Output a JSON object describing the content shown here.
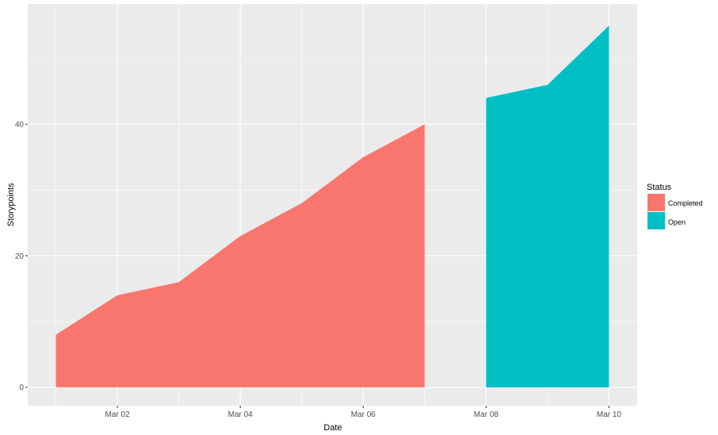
{
  "chart_data": {
    "type": "area",
    "xlabel": "Date",
    "ylabel": "Storypoints",
    "x_ticks": [
      "Mar 02",
      "Mar 04",
      "Mar 06",
      "Mar 08",
      "Mar 10"
    ],
    "y_ticks": [
      0,
      20,
      40
    ],
    "xlim": [
      "Feb 28 13:00",
      "Mar 10 11:00"
    ],
    "ylim": [
      -2.8,
      58.3
    ],
    "grid": true,
    "legend": {
      "title": "Status",
      "placement": "right",
      "entries": [
        {
          "label": "Completed",
          "color": "#F8766D"
        },
        {
          "label": "Open",
          "color": "#00BFC4"
        }
      ]
    },
    "series": [
      {
        "name": "Completed",
        "color": "#F8766D",
        "x": [
          "Mar 01",
          "Mar 02",
          "Mar 03",
          "Mar 04",
          "Mar 05",
          "Mar 06",
          "Mar 07"
        ],
        "y": [
          8,
          14,
          16,
          23,
          28,
          35,
          40
        ]
      },
      {
        "name": "Open",
        "color": "#00BFC4",
        "x": [
          "Mar 08",
          "Mar 09",
          "Mar 10"
        ],
        "y": [
          44,
          46,
          55
        ]
      }
    ]
  }
}
